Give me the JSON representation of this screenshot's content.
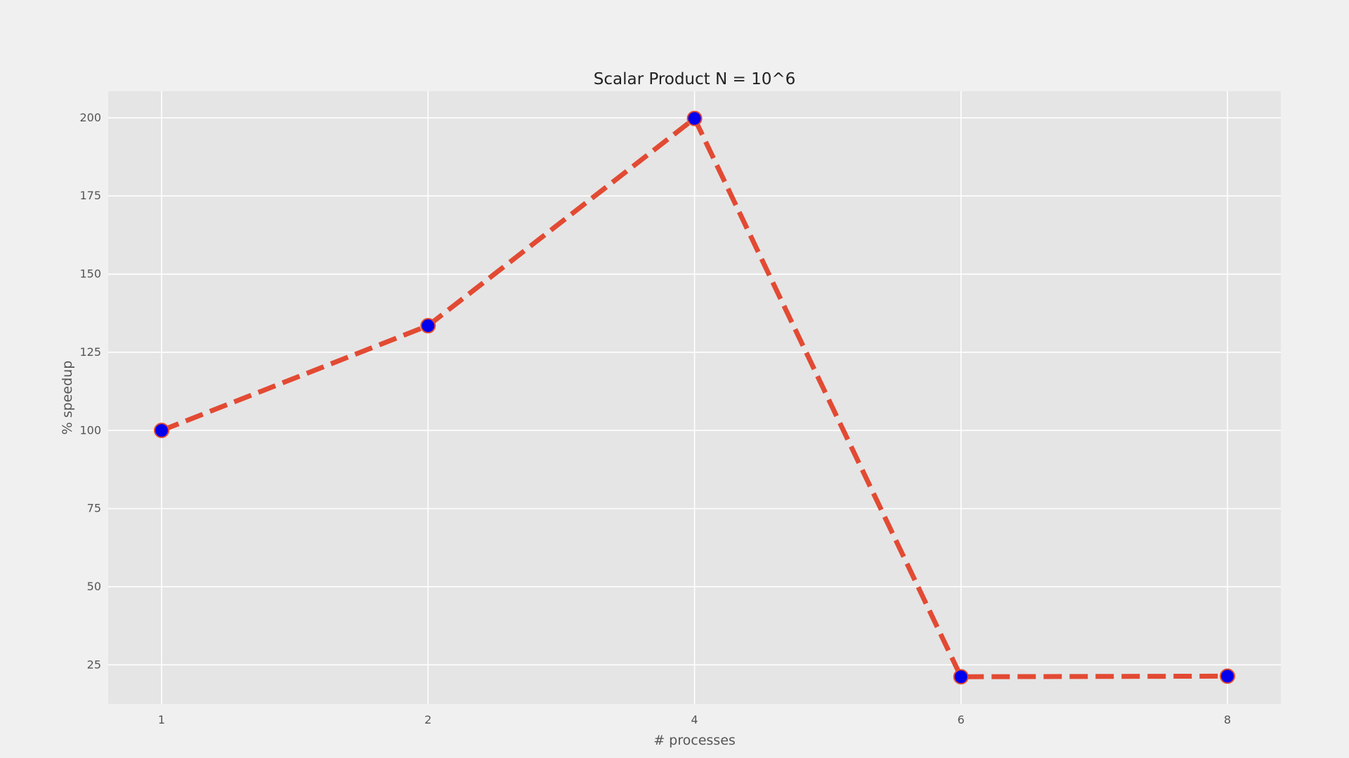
{
  "chart_data": {
    "type": "line",
    "title": "Scalar Product N = 10^6",
    "xlabel": "# processes",
    "ylabel": "% speedup",
    "categories": [
      "1",
      "2",
      "4",
      "6",
      "8"
    ],
    "series": [
      {
        "values": [
          100,
          133.5,
          199.8,
          21.2,
          21.4
        ]
      }
    ],
    "yticks": [
      25,
      50,
      75,
      100,
      125,
      150,
      175,
      200
    ],
    "ylim": [
      12.5,
      208.5
    ],
    "grid": true,
    "line_style": "dashed",
    "colors": {
      "background": "#f0f0f0",
      "plot_area": "#e5e5e5",
      "grid": "#ffffff",
      "line": "#e24a33",
      "marker_fill": "#0000ee",
      "marker_edge": "#e24a33"
    }
  }
}
